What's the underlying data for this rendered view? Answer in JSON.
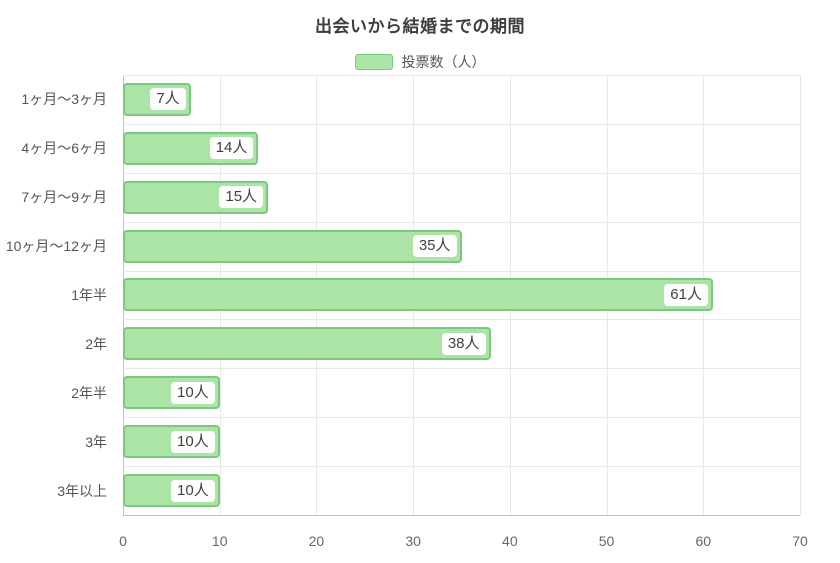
{
  "chart_data": {
    "type": "bar",
    "orientation": "horizontal",
    "title": "出会いから結婚までの期間",
    "legend_label": "投票数（人）",
    "categories": [
      "1ヶ月〜3ヶ月",
      "4ヶ月〜6ヶ月",
      "7ヶ月〜9ヶ月",
      "10ヶ月〜12ヶ月",
      "1年半",
      "2年",
      "2年半",
      "3年",
      "3年以上"
    ],
    "values": [
      7,
      14,
      15,
      35,
      61,
      38,
      10,
      10,
      10
    ],
    "value_labels": [
      "7人",
      "14人",
      "15人",
      "35人",
      "61人",
      "38人",
      "10人",
      "10人",
      "10人"
    ],
    "unit": "人",
    "xlim": [
      0,
      70
    ],
    "xticks": [
      0,
      10,
      20,
      30,
      40,
      50,
      60,
      70
    ],
    "grid": true,
    "legend_position": "top",
    "colors": {
      "bar_fill": "#ace4a8",
      "bar_border": "#7cc87f",
      "grid": "#e8e8e8",
      "axis": "#c2c2c2",
      "title_text": "#3d3d3d",
      "label_text": "#555555",
      "tick_text": "#666666",
      "value_text": "#414141"
    }
  }
}
